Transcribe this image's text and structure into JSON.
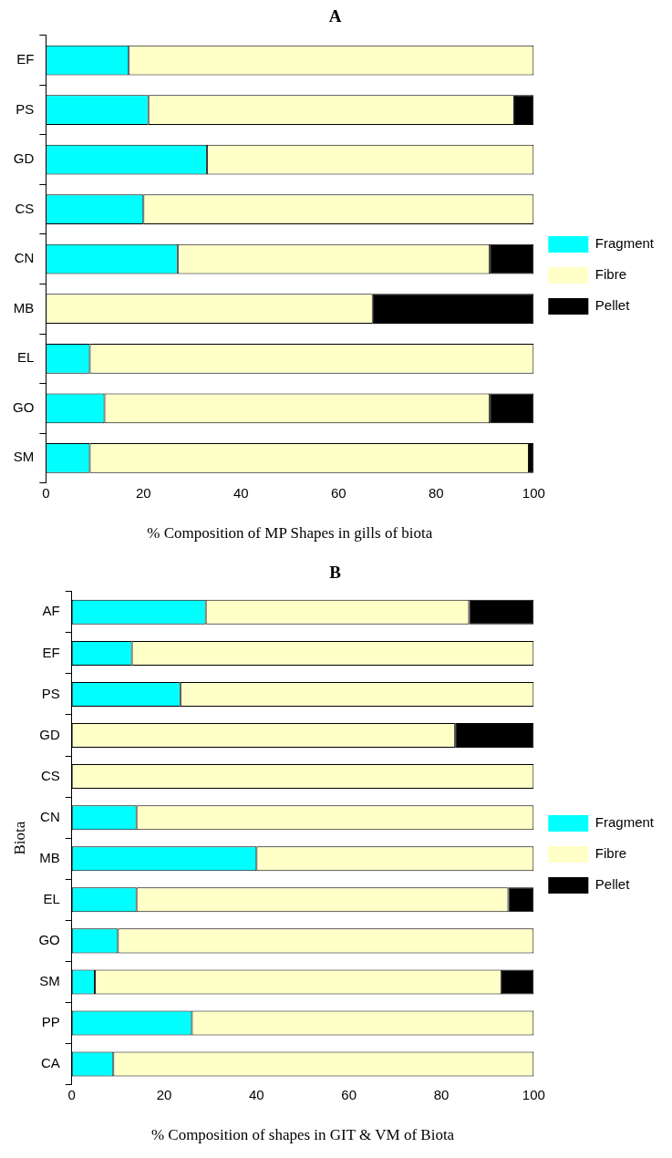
{
  "chart_data": [
    {
      "type": "bar",
      "title": "A",
      "xlabel": "% Composition of MP Shapes in gills of biota",
      "orientation": "horizontal",
      "stacked": true,
      "grid": false,
      "legend": "right",
      "categories": [
        "EF",
        "PS",
        "GD",
        "CS",
        "CN",
        "MB",
        "EL",
        "GO",
        "SM"
      ],
      "xlim": [
        0,
        100
      ],
      "xticks": [
        0,
        20,
        40,
        60,
        80,
        100
      ],
      "series": [
        {
          "name": "Fragment",
          "color": "#00ffff",
          "values": [
            17,
            21,
            33,
            20,
            27,
            0,
            9,
            12,
            9
          ]
        },
        {
          "name": "Fibre",
          "color": "#ffffc8",
          "values": [
            83,
            75,
            67,
            80,
            64,
            67,
            91,
            79,
            90
          ]
        },
        {
          "name": "Pellet",
          "color": "#000000",
          "values": [
            0,
            4,
            0,
            0,
            9,
            33,
            0,
            9,
            1
          ]
        }
      ]
    },
    {
      "type": "bar",
      "title": "B",
      "xlabel": "% Composition of shapes in GIT & VM of Biota",
      "ylabel": "Biota",
      "orientation": "horizontal",
      "stacked": true,
      "grid": false,
      "legend": "right",
      "categories": [
        "AF",
        "EF",
        "PS",
        "GD",
        "CS",
        "CN",
        "MB",
        "EL",
        "GO",
        "SM",
        "PP",
        "CA"
      ],
      "xlim": [
        0,
        100
      ],
      "xticks": [
        0,
        20,
        40,
        60,
        80,
        100
      ],
      "series": [
        {
          "name": "Fragment",
          "color": "#00ffff",
          "values": [
            29,
            13,
            23.5,
            0,
            0,
            14,
            40,
            14,
            10,
            5,
            26,
            9
          ]
        },
        {
          "name": "Fibre",
          "color": "#ffffc8",
          "values": [
            57,
            87,
            76.5,
            83,
            100,
            86,
            60,
            80.5,
            90,
            88,
            74,
            91
          ]
        },
        {
          "name": "Pellet",
          "color": "#000000",
          "values": [
            14,
            0,
            0,
            17,
            0,
            0,
            0,
            5.5,
            0,
            7,
            0,
            0
          ]
        }
      ]
    }
  ]
}
